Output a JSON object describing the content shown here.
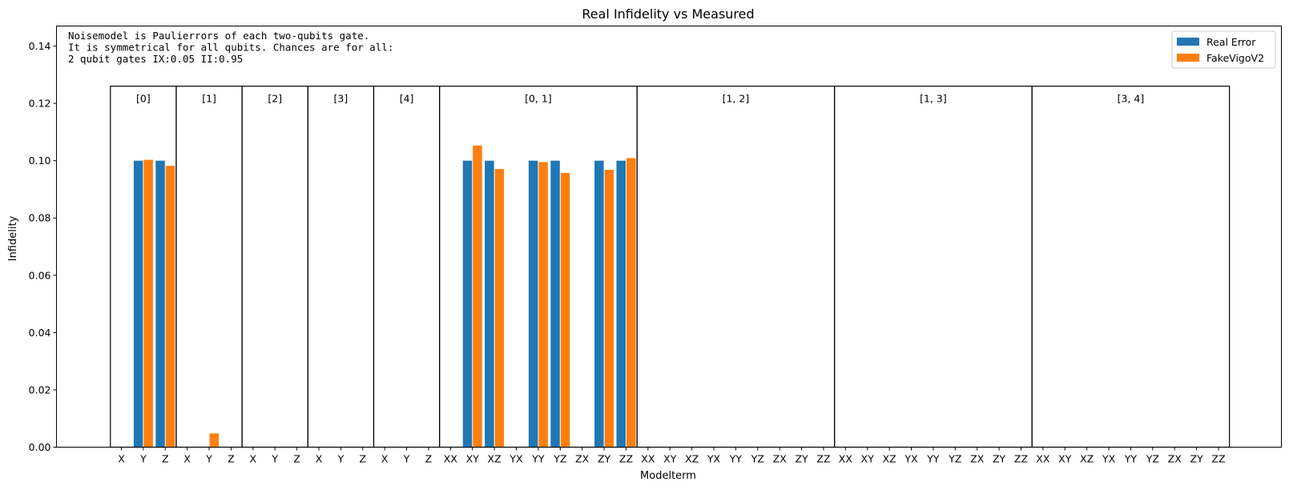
{
  "chart_data": {
    "type": "bar",
    "title": "Real Infidelity vs Measured",
    "xlabel": "Modelterm",
    "ylabel": "Infidelity",
    "ylim": [
      0,
      0.147
    ],
    "yticks": [
      "0.00",
      "0.02",
      "0.04",
      "0.06",
      "0.08",
      "0.10",
      "0.12",
      "0.14"
    ],
    "grid": false,
    "legend_position": "top-right",
    "annotation": [
      "Noisemodel is Paulierrors of each two-qubits gate.",
      "It is symmetrical for all qubits. Chances are for all:",
      "2 qubit gates IX:0.05   II:0.95"
    ],
    "categories": [
      "X",
      "Y",
      "Z",
      "X",
      "Y",
      "Z",
      "X",
      "Y",
      "Z",
      "X",
      "Y",
      "Z",
      "X",
      "Y",
      "Z",
      "XX",
      "XY",
      "XZ",
      "YX",
      "YY",
      "YZ",
      "ZX",
      "ZY",
      "ZZ",
      "XX",
      "XY",
      "XZ",
      "YX",
      "YY",
      "YZ",
      "ZX",
      "ZY",
      "ZZ",
      "XX",
      "XY",
      "XZ",
      "YX",
      "YY",
      "YZ",
      "ZX",
      "ZY",
      "ZZ",
      "XX",
      "XY",
      "XZ",
      "YX",
      "YY",
      "YZ",
      "ZX",
      "ZY",
      "ZZ"
    ],
    "groups": [
      {
        "label": "[0]",
        "start": 0,
        "end": 2
      },
      {
        "label": "[1]",
        "start": 3,
        "end": 5
      },
      {
        "label": "[2]",
        "start": 6,
        "end": 8
      },
      {
        "label": "[3]",
        "start": 9,
        "end": 11
      },
      {
        "label": "[4]",
        "start": 12,
        "end": 14
      },
      {
        "label": "[0, 1]",
        "start": 15,
        "end": 23
      },
      {
        "label": "[1, 2]",
        "start": 24,
        "end": 32
      },
      {
        "label": "[1, 3]",
        "start": 33,
        "end": 41
      },
      {
        "label": "[3, 4]",
        "start": 42,
        "end": 50
      }
    ],
    "group_box_top": 0.126,
    "series": [
      {
        "name": "Real Error",
        "color": "#1f77b4",
        "values": [
          0,
          0.1,
          0.1,
          0,
          0,
          0,
          0,
          0,
          0,
          0,
          0,
          0,
          0,
          0,
          0,
          0,
          0.1,
          0.1,
          0,
          0.1,
          0.1,
          0,
          0.1,
          0.1,
          0,
          0,
          0,
          0,
          0,
          0,
          0,
          0,
          0,
          0,
          0,
          0,
          0,
          0,
          0,
          0,
          0,
          0,
          0,
          0,
          0,
          0,
          0,
          0,
          0,
          0,
          0
        ]
      },
      {
        "name": "FakeVigoV2",
        "color": "#ff7f0e",
        "values": [
          0,
          0.1003,
          0.0982,
          0,
          0.0048,
          0,
          0,
          0,
          0,
          0,
          0,
          0,
          0,
          0,
          0,
          0,
          0.1053,
          0.0971,
          0,
          0.0995,
          0.0957,
          0,
          0.0968,
          0.1009,
          0,
          0,
          0,
          0,
          0,
          0,
          0,
          0,
          0,
          0,
          0,
          0,
          0,
          0,
          0,
          0,
          0,
          0,
          0,
          0,
          0,
          0,
          0,
          0,
          0,
          0,
          0
        ]
      }
    ]
  }
}
